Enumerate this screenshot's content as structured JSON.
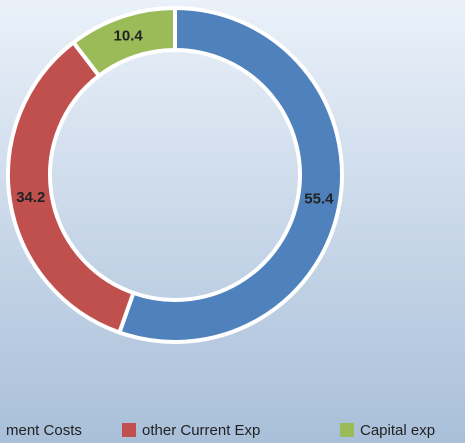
{
  "chart_data": {
    "type": "donut",
    "categories": [
      "ment Costs",
      "other Current Exp",
      "Capital exp"
    ],
    "values": [
      55.4,
      34.2,
      10.4
    ],
    "colors": [
      "#4f81bd",
      "#c0504d",
      "#9bbb59"
    ],
    "legend": "bottom"
  }
}
